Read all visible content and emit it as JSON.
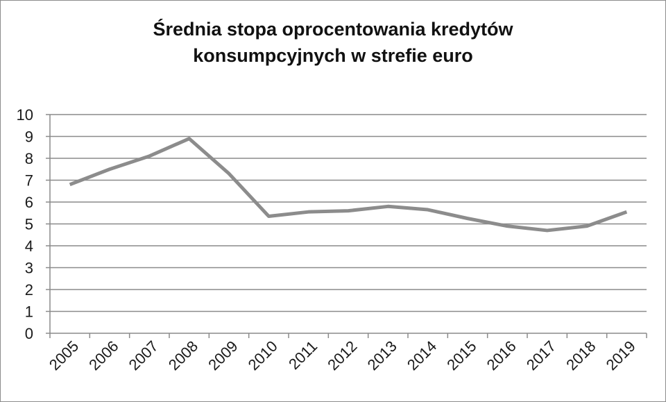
{
  "chart_data": {
    "type": "line",
    "title_lines": [
      "Średnia stopa oprocentowania kredytów",
      "konsumpcyjnych w strefie euro"
    ],
    "xlabel": "",
    "ylabel": "",
    "ylim": [
      0,
      10
    ],
    "yticks": [
      "0",
      "1",
      "2",
      "3",
      "4",
      "5",
      "6",
      "7",
      "8",
      "9",
      "10"
    ],
    "categories": [
      "2005",
      "2006",
      "2007",
      "2008",
      "2009",
      "2010",
      "2011",
      "2012",
      "2013",
      "2014",
      "2015",
      "2016",
      "2017",
      "2018",
      "2019"
    ],
    "series": [
      {
        "values": [
          6.8,
          7.5,
          8.1,
          8.9,
          7.3,
          5.35,
          5.55,
          5.6,
          5.8,
          5.65,
          5.25,
          4.9,
          4.7,
          4.9,
          5.55
        ],
        "color": "#8c8c8c"
      }
    ],
    "grid": true,
    "legend": "none"
  }
}
